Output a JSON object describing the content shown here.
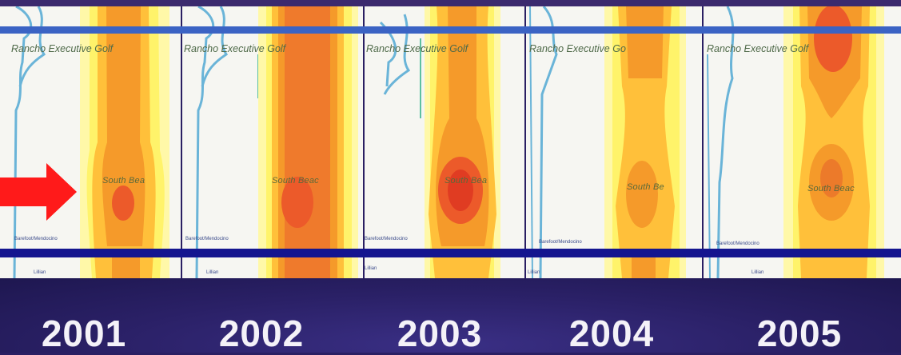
{
  "panels": [
    {
      "year": "2001",
      "title": "Rancho Executive Golf",
      "place_label": "South Bea",
      "small_label_1": "Barefoot/Mendocino",
      "small_label_2": "Lillian"
    },
    {
      "year": "2002",
      "title": "Rancho Executive Golf",
      "place_label": "South Beac",
      "small_label_1": "Barefoot/Mendocino",
      "small_label_2": "Lillian"
    },
    {
      "year": "2003",
      "title": "Rancho Executive Golf",
      "place_label": "South Bea",
      "small_label_1": "Barefoot/Mendocino",
      "small_label_2": "Lillian"
    },
    {
      "year": "2004",
      "title": "Rancho Executive Go",
      "place_label": "South Be",
      "small_label_1": "Barefoot/Mendocino",
      "small_label_2": "Lillian"
    },
    {
      "year": "2005",
      "title": "Rancho Executive Golf",
      "place_label": "South Beac",
      "small_label_1": "Barefoot/Mendocino",
      "small_label_2": "Lillian"
    }
  ],
  "colors": {
    "background": "#2a1f63",
    "top_line": "#3b63c4",
    "bottom_line": "#14158f",
    "arrow": "#ff1a1a",
    "heat_yellow": "#fff36a",
    "heat_light_orange": "#ffc03a",
    "heat_orange": "#f59a2a",
    "heat_red": "#ec5a2a",
    "coast_blue": "#6ab4d8"
  },
  "icons": {
    "arrow": "right-arrow-icon"
  }
}
